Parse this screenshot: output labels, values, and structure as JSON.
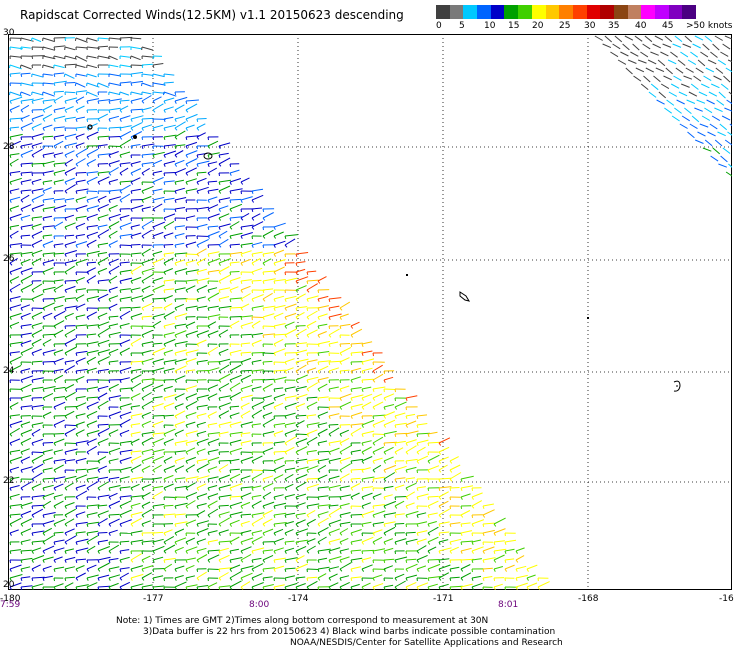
{
  "title": "Rapidscat Corrected Winds(12.5KM) v1.1 20150623 descending",
  "legend": {
    "labels": [
      "0",
      "5",
      "10",
      "15",
      "20",
      "25",
      "30",
      "35",
      "40",
      "45",
      ">50 knots"
    ],
    "colors": [
      "#404040",
      "#7a7a7a",
      "#00c8ff",
      "#0064ff",
      "#0000c8",
      "#00a000",
      "#40d000",
      "#ffff00",
      "#ffc800",
      "#ff8000",
      "#ff4000",
      "#e00000",
      "#b00000",
      "#8b4513",
      "#c08060",
      "#ff00ff",
      "#c000ff",
      "#8000c0",
      "#4b0082"
    ]
  },
  "map": {
    "lat_labels": [
      "30",
      "28",
      "26",
      "24",
      "22",
      "20"
    ],
    "lon_labels": [
      "-180",
      "-177",
      "-174",
      "-171",
      "-168",
      "-16"
    ],
    "time_labels": [
      "7:59",
      "8:00",
      "8:01"
    ]
  },
  "notes": {
    "line1": "Note: 1) Times are GMT 2)Times along bottom correspond to measurement at 30N",
    "line2": "3)Data buffer is 22 hrs from 20150623 4) Black wind barbs indicate possible contamination",
    "line3": "NOAA/NESDIS/Center for Satellite Applications and Research"
  }
}
